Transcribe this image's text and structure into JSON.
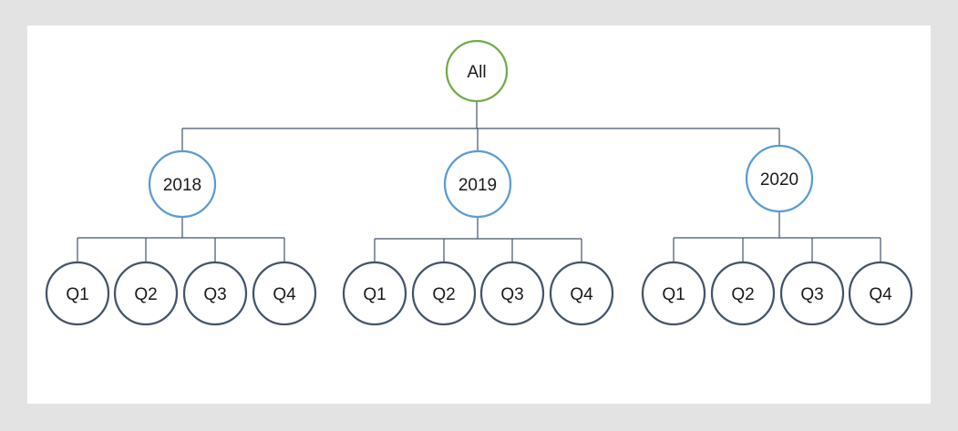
{
  "scene": {
    "background_color": "#e3e3e3",
    "canvas_color": "#ffffff"
  },
  "diagram": {
    "type": "hierarchy-tree",
    "colors": {
      "root_stroke": "#70AD47",
      "year_stroke": "#5B9BD5",
      "quarter_stroke": "#44546A",
      "connector": "#44546A",
      "label_text": "#1a1a1a"
    },
    "root": {
      "label": "All"
    },
    "years": [
      {
        "label": "2018",
        "quarters": [
          "Q1",
          "Q2",
          "Q3",
          "Q4"
        ]
      },
      {
        "label": "2019",
        "quarters": [
          "Q1",
          "Q2",
          "Q3",
          "Q4"
        ]
      },
      {
        "label": "2020",
        "quarters": [
          "Q1",
          "Q2",
          "Q3",
          "Q4"
        ]
      }
    ]
  }
}
